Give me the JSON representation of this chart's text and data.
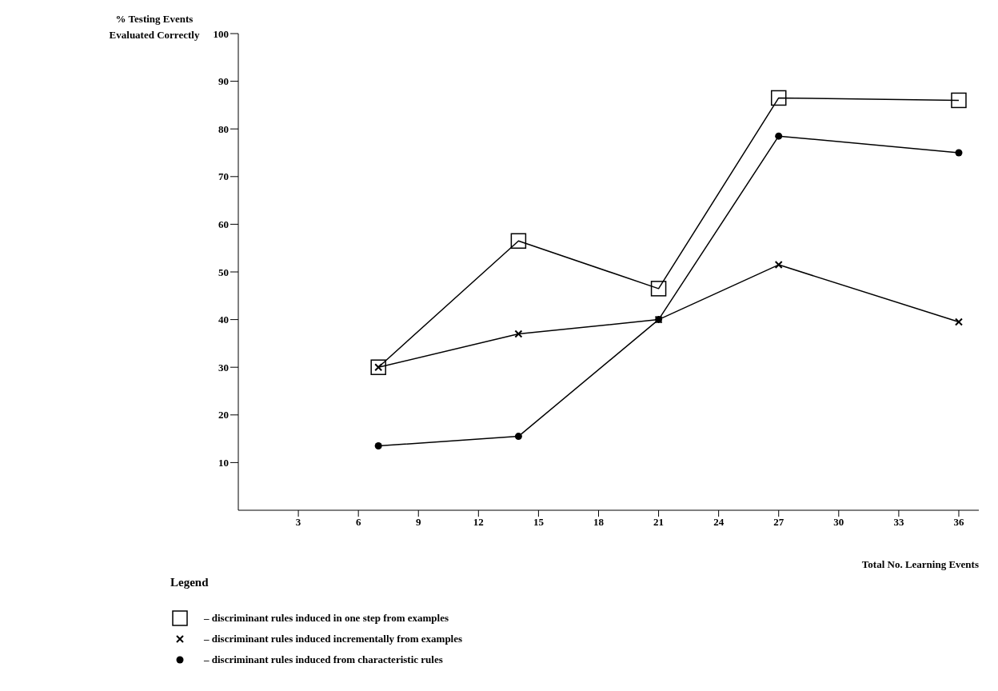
{
  "chart_data": {
    "type": "line",
    "ylabel": "% Testing Events\nEvaluated Correctly",
    "xlabel": "Total No. Learning Events",
    "legend_title": "Legend",
    "x": [
      7,
      14,
      21,
      27,
      36
    ],
    "series": [
      {
        "name": "– discriminant rules induced in one step from examples",
        "color": "#000000",
        "marker": "square",
        "values": [
          30,
          56.5,
          46.5,
          86.5,
          86
        ]
      },
      {
        "name": "– discriminant rules induced incrementally from examples",
        "color": "#000000",
        "marker": "cross",
        "values": [
          30,
          37,
          40,
          51.5,
          39.5
        ]
      },
      {
        "name": "– discriminant rules induced from characteristic rules",
        "color": "#000000",
        "marker": "circle",
        "values": [
          13.5,
          15.5,
          40,
          78.5,
          75
        ]
      }
    ],
    "xlim": [
      0,
      37
    ],
    "xticks": [
      3,
      6,
      9,
      12,
      15,
      18,
      21,
      24,
      27,
      30,
      33,
      36
    ],
    "ylim": [
      0,
      100
    ],
    "yticks": [
      10,
      20,
      30,
      40,
      50,
      60,
      70,
      80,
      90,
      100
    ],
    "grid": false,
    "legend": "bottom",
    "line_style": "solid"
  }
}
